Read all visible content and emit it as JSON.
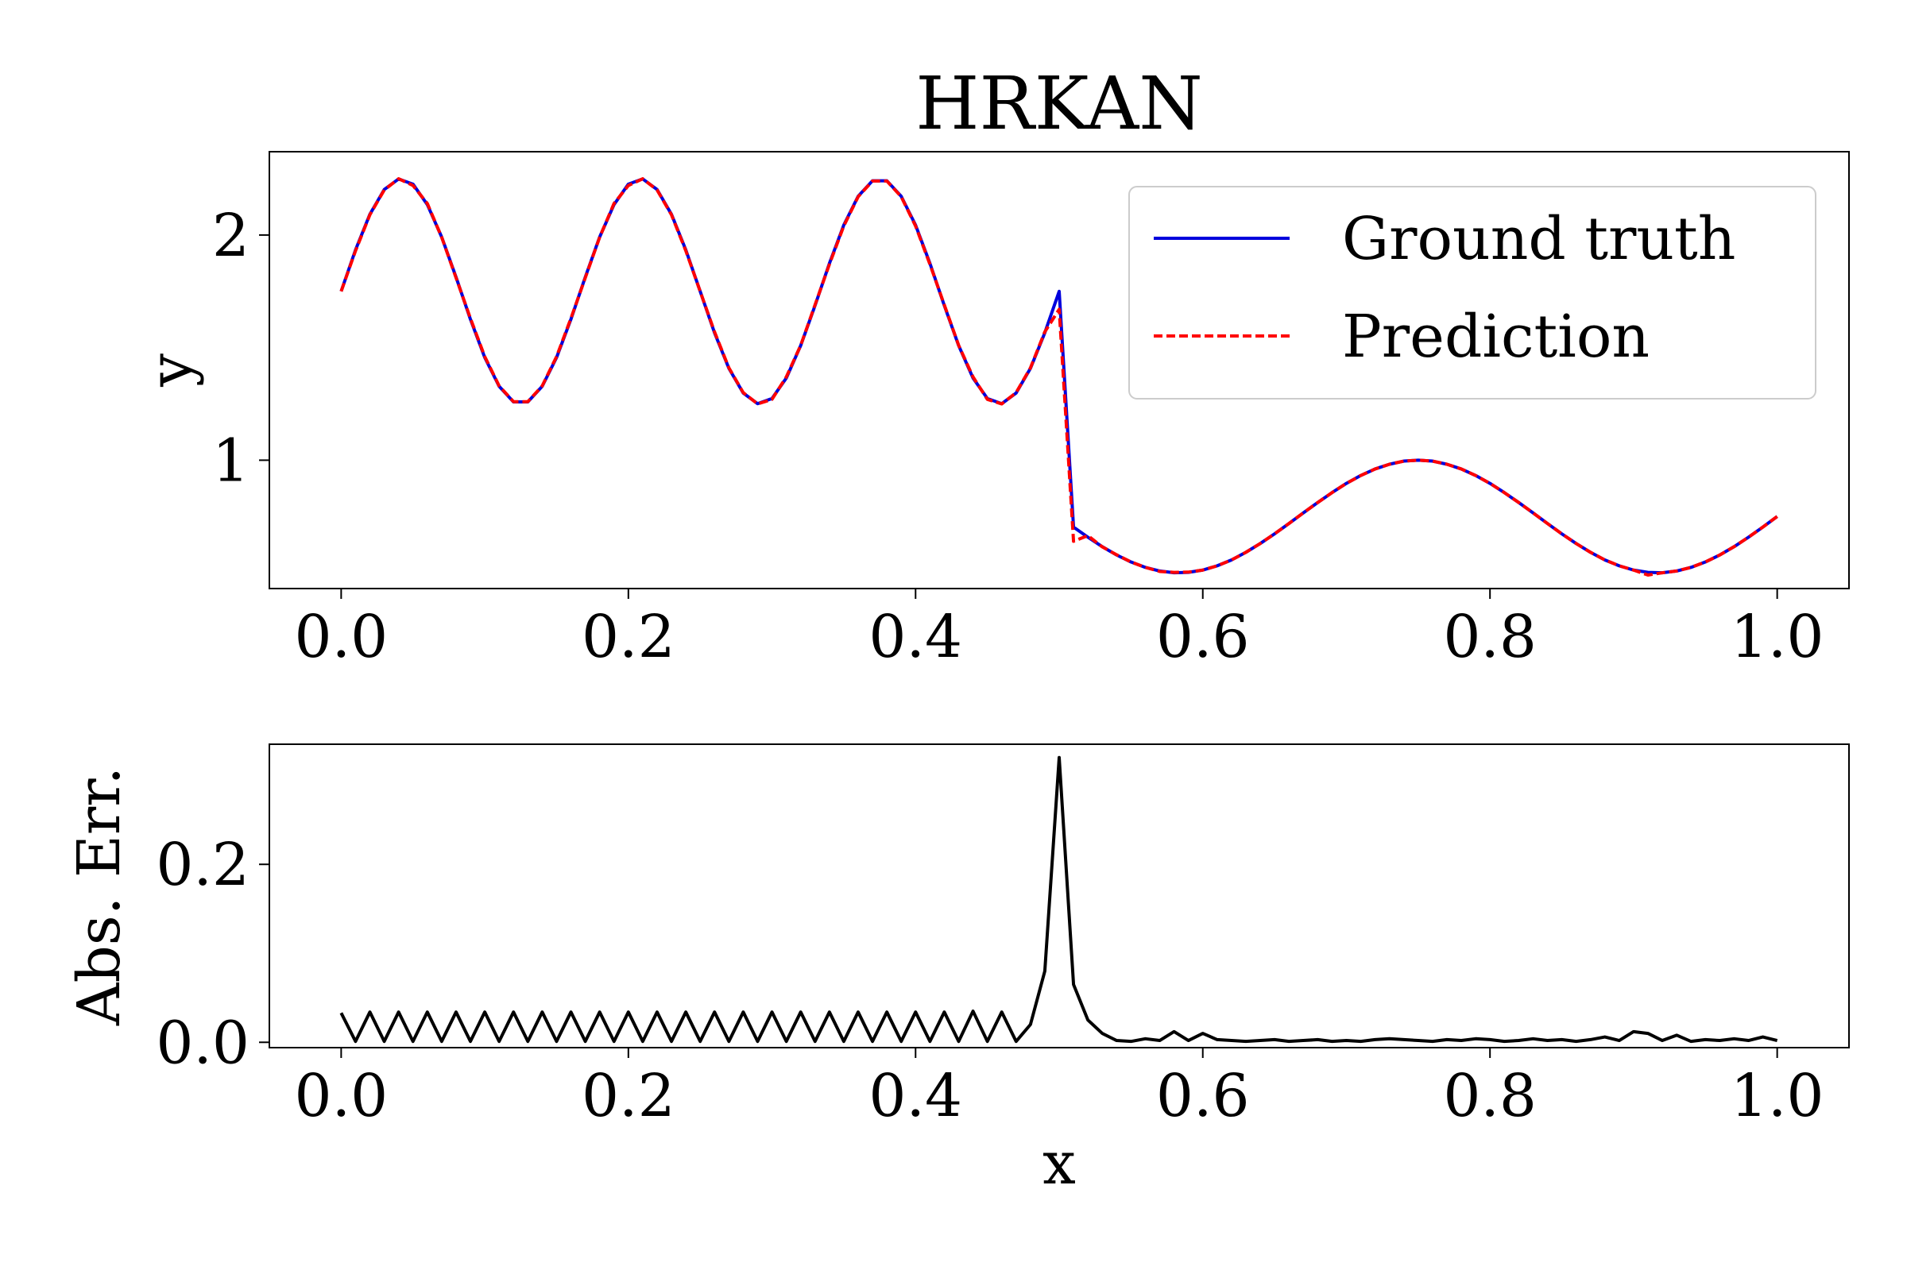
{
  "chart_data": [
    {
      "type": "line",
      "title": "HRKAN",
      "ylabel": "y",
      "legend": "upper right",
      "xlim": [
        -0.05,
        1.05
      ],
      "ylim": [
        0.43,
        2.37
      ],
      "xticks": [
        {
          "value": 0,
          "label": "0.0"
        },
        {
          "value": 0.2,
          "label": "0.2"
        },
        {
          "value": 0.4,
          "label": "0.4"
        },
        {
          "value": 0.6,
          "label": "0.6"
        },
        {
          "value": 0.8,
          "label": "0.8"
        },
        {
          "value": 1,
          "label": "1.0"
        }
      ],
      "yticks": [
        1,
        2
      ],
      "x": [
        0,
        0.01,
        0.02,
        0.03,
        0.04,
        0.05,
        0.06,
        0.07,
        0.08,
        0.09,
        0.1,
        0.11,
        0.12,
        0.13,
        0.14,
        0.15,
        0.16,
        0.17,
        0.18,
        0.19,
        0.2,
        0.21,
        0.22,
        0.23,
        0.24,
        0.25,
        0.26,
        0.27,
        0.28,
        0.29,
        0.3,
        0.31,
        0.32,
        0.33,
        0.34,
        0.35,
        0.36,
        0.37,
        0.38,
        0.39,
        0.4,
        0.41,
        0.42,
        0.43,
        0.44,
        0.45,
        0.46,
        0.47,
        0.48,
        0.49,
        0.5,
        0.51,
        0.52,
        0.53,
        0.54,
        0.55,
        0.56,
        0.57,
        0.58,
        0.59,
        0.6,
        0.61,
        0.62,
        0.63,
        0.64,
        0.65,
        0.66,
        0.67,
        0.68,
        0.69,
        0.7,
        0.71,
        0.72,
        0.73,
        0.74,
        0.75,
        0.76,
        0.77,
        0.78,
        0.79,
        0.8,
        0.81,
        0.82,
        0.83,
        0.84,
        0.85,
        0.86,
        0.87,
        0.88,
        0.89,
        0.9,
        0.91,
        0.92,
        0.93,
        0.94,
        0.95,
        0.96,
        0.97,
        0.98,
        0.99,
        1
      ],
      "series": [
        {
          "name": "Ground truth",
          "color": "#0000dd",
          "linestyle": "solid",
          "values": [
            1.75,
            1.934,
            2.092,
            2.202,
            2.249,
            2.226,
            2.135,
            1.991,
            1.813,
            1.626,
            1.456,
            1.328,
            1.259,
            1.259,
            1.328,
            1.456,
            1.626,
            1.813,
            1.991,
            2.135,
            2.226,
            2.249,
            2.202,
            2.092,
            1.934,
            1.75,
            1.566,
            1.408,
            1.298,
            1.251,
            1.274,
            1.365,
            1.509,
            1.687,
            1.874,
            2.044,
            2.172,
            2.241,
            2.241,
            2.172,
            2.044,
            1.874,
            1.687,
            1.509,
            1.365,
            1.274,
            1.251,
            1.298,
            1.408,
            1.566,
            1.75,
            0.703,
            0.658,
            0.616,
            0.579,
            0.548,
            0.524,
            0.508,
            0.5,
            0.502,
            0.512,
            0.531,
            0.557,
            0.591,
            0.63,
            0.673,
            0.719,
            0.766,
            0.812,
            0.856,
            0.897,
            0.932,
            0.961,
            0.982,
            0.996,
            1.0,
            0.996,
            0.982,
            0.961,
            0.932,
            0.897,
            0.856,
            0.812,
            0.766,
            0.719,
            0.673,
            0.63,
            0.591,
            0.557,
            0.531,
            0.512,
            0.502,
            0.5,
            0.508,
            0.524,
            0.548,
            0.579,
            0.616,
            0.658,
            0.703,
            0.75
          ]
        },
        {
          "name": "Prediction",
          "color": "#ff0000",
          "linestyle": "dashed",
          "values": [
            1.75,
            1.93,
            2.09,
            2.2,
            2.25,
            2.22,
            2.14,
            1.99,
            1.81,
            1.63,
            1.46,
            1.33,
            1.26,
            1.26,
            1.33,
            1.46,
            1.63,
            1.81,
            1.99,
            2.14,
            2.22,
            2.25,
            2.2,
            2.09,
            1.93,
            1.75,
            1.57,
            1.41,
            1.3,
            1.25,
            1.27,
            1.37,
            1.51,
            1.69,
            1.87,
            2.04,
            2.17,
            2.24,
            2.24,
            2.17,
            2.04,
            1.87,
            1.69,
            1.51,
            1.37,
            1.27,
            1.25,
            1.3,
            1.41,
            1.57,
            1.67,
            0.64,
            0.665,
            0.615,
            0.58,
            0.548,
            0.524,
            0.506,
            0.502,
            0.503,
            0.512,
            0.531,
            0.557,
            0.591,
            0.63,
            0.673,
            0.719,
            0.766,
            0.812,
            0.856,
            0.897,
            0.932,
            0.961,
            0.982,
            0.996,
            1.0,
            0.996,
            0.982,
            0.961,
            0.932,
            0.897,
            0.856,
            0.812,
            0.766,
            0.719,
            0.673,
            0.63,
            0.591,
            0.557,
            0.531,
            0.512,
            0.49,
            0.5,
            0.508,
            0.524,
            0.548,
            0.579,
            0.616,
            0.658,
            0.703,
            0.75
          ]
        }
      ]
    },
    {
      "type": "line",
      "xlabel": "x",
      "ylabel": "Abs. Err.",
      "xlim": [
        -0.05,
        1.05
      ],
      "ylim": [
        -0.006,
        0.335
      ],
      "xticks": [
        {
          "value": 0,
          "label": "0.0"
        },
        {
          "value": 0.2,
          "label": "0.2"
        },
        {
          "value": 0.4,
          "label": "0.4"
        },
        {
          "value": 0.6,
          "label": "0.6"
        },
        {
          "value": 0.8,
          "label": "0.8"
        },
        {
          "value": 1,
          "label": "1.0"
        }
      ],
      "yticks": [
        {
          "value": 0,
          "label": "0.0"
        },
        {
          "value": 0.2,
          "label": "0.2"
        }
      ],
      "x": [
        0,
        0.01,
        0.02,
        0.03,
        0.04,
        0.05,
        0.06,
        0.07,
        0.08,
        0.09,
        0.1,
        0.11,
        0.12,
        0.13,
        0.14,
        0.15,
        0.16,
        0.17,
        0.18,
        0.19,
        0.2,
        0.21,
        0.22,
        0.23,
        0.24,
        0.25,
        0.26,
        0.27,
        0.28,
        0.29,
        0.3,
        0.31,
        0.32,
        0.33,
        0.34,
        0.35,
        0.36,
        0.37,
        0.38,
        0.39,
        0.4,
        0.41,
        0.42,
        0.43,
        0.44,
        0.45,
        0.46,
        0.47,
        0.48,
        0.49,
        0.5,
        0.51,
        0.52,
        0.53,
        0.54,
        0.55,
        0.56,
        0.57,
        0.58,
        0.59,
        0.6,
        0.61,
        0.62,
        0.63,
        0.64,
        0.65,
        0.66,
        0.67,
        0.68,
        0.69,
        0.7,
        0.71,
        0.72,
        0.73,
        0.74,
        0.75,
        0.76,
        0.77,
        0.78,
        0.79,
        0.8,
        0.81,
        0.82,
        0.83,
        0.84,
        0.85,
        0.86,
        0.87,
        0.88,
        0.89,
        0.9,
        0.91,
        0.92,
        0.93,
        0.94,
        0.95,
        0.96,
        0.97,
        0.98,
        0.99,
        1
      ],
      "series": [
        {
          "color": "#000000",
          "linestyle": "solid",
          "values": [
            0.033,
            0.001,
            0.034,
            0.001,
            0.034,
            0.001,
            0.034,
            0.001,
            0.034,
            0.001,
            0.034,
            0.001,
            0.034,
            0.001,
            0.034,
            0.001,
            0.034,
            0.001,
            0.034,
            0.001,
            0.034,
            0.001,
            0.034,
            0.001,
            0.034,
            0.001,
            0.034,
            0.001,
            0.034,
            0.001,
            0.034,
            0.001,
            0.034,
            0.001,
            0.034,
            0.001,
            0.034,
            0.001,
            0.034,
            0.001,
            0.034,
            0.001,
            0.034,
            0.001,
            0.035,
            0.001,
            0.034,
            0.001,
            0.02,
            0.08,
            0.32,
            0.065,
            0.025,
            0.01,
            0.002,
            0.001,
            0.004,
            0.002,
            0.012,
            0.002,
            0.01,
            0.003,
            0.002,
            0.001,
            0.002,
            0.003,
            0.001,
            0.002,
            0.003,
            0.001,
            0.002,
            0.001,
            0.003,
            0.004,
            0.003,
            0.002,
            0.001,
            0.003,
            0.002,
            0.004,
            0.003,
            0.001,
            0.002,
            0.004,
            0.002,
            0.003,
            0.001,
            0.003,
            0.006,
            0.002,
            0.012,
            0.01,
            0.002,
            0.008,
            0.001,
            0.003,
            0.002,
            0.004,
            0.002,
            0.006,
            0.002
          ]
        }
      ]
    }
  ]
}
